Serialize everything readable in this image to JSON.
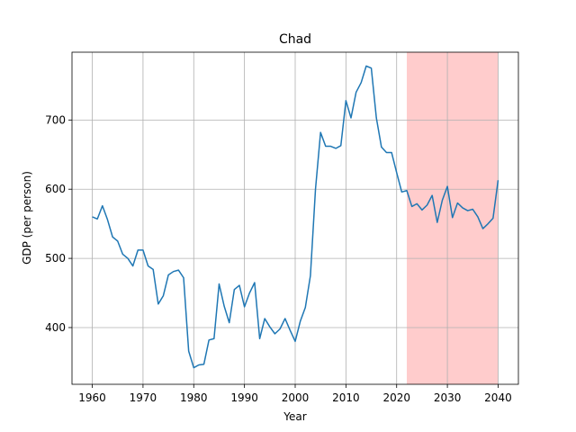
{
  "chart_data": {
    "type": "line",
    "title": "Chad",
    "xlabel": "Year",
    "ylabel": "GDP (per person)",
    "xlim": [
      1956,
      2044
    ],
    "ylim": [
      318,
      798
    ],
    "xticks": [
      1960,
      1970,
      1980,
      1990,
      2000,
      2010,
      2020,
      2030,
      2040
    ],
    "yticks": [
      400,
      500,
      600,
      700
    ],
    "grid": true,
    "colors": {
      "line": "#1f77b4",
      "shade": "#ff9999",
      "grid": "#b0b0b0",
      "axis": "#000000"
    },
    "shaded_region": {
      "x_start": 2022,
      "x_end": 2040
    },
    "series": [
      {
        "name": "GDP per person",
        "x": [
          1960,
          1961,
          1962,
          1963,
          1964,
          1965,
          1966,
          1967,
          1968,
          1969,
          1970,
          1971,
          1972,
          1973,
          1974,
          1975,
          1976,
          1977,
          1978,
          1979,
          1980,
          1981,
          1982,
          1983,
          1984,
          1985,
          1986,
          1987,
          1988,
          1989,
          1990,
          1991,
          1992,
          1993,
          1994,
          1995,
          1996,
          1997,
          1998,
          1999,
          2000,
          2001,
          2002,
          2003,
          2004,
          2005,
          2006,
          2007,
          2008,
          2009,
          2010,
          2011,
          2012,
          2013,
          2014,
          2015,
          2016,
          2017,
          2018,
          2019,
          2020,
          2021,
          2022,
          2023,
          2024,
          2025,
          2026,
          2027,
          2028,
          2029,
          2030,
          2031,
          2032,
          2033,
          2034,
          2035,
          2036,
          2037,
          2038,
          2039,
          2040
        ],
        "values": [
          560,
          557,
          576,
          556,
          531,
          525,
          506,
          500,
          489,
          512,
          512,
          489,
          484,
          434,
          446,
          476,
          481,
          483,
          472,
          366,
          342,
          346,
          347,
          382,
          384,
          463,
          431,
          407,
          455,
          461,
          430,
          450,
          465,
          384,
          413,
          401,
          391,
          398,
          413,
          396,
          380,
          409,
          429,
          475,
          600,
          682,
          662,
          662,
          659,
          663,
          728,
          703,
          740,
          754,
          778,
          775,
          703,
          661,
          653,
          653,
          624,
          596,
          598,
          575,
          579,
          570,
          577,
          591,
          552,
          584,
          604,
          559,
          580,
          573,
          569,
          571,
          560,
          543,
          550,
          558,
          613
        ]
      }
    ]
  }
}
